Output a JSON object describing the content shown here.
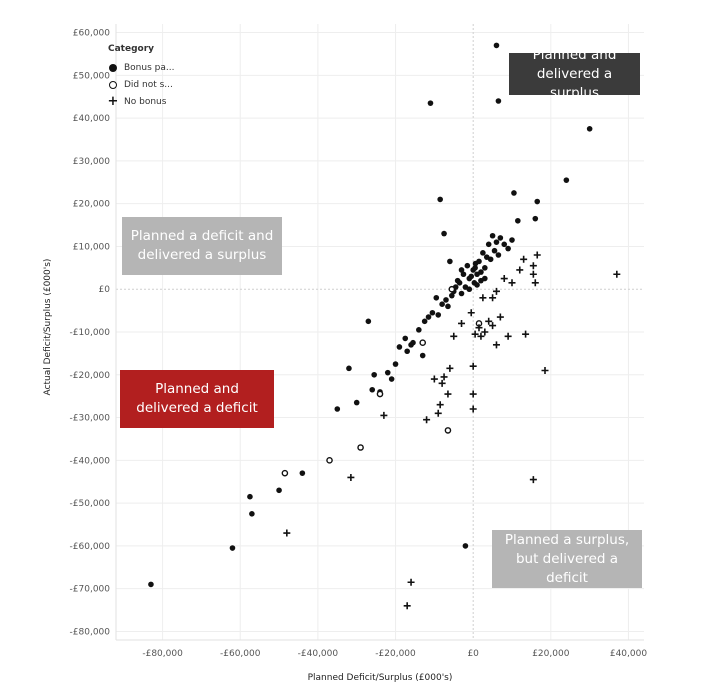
{
  "chart_data": {
    "type": "scatter",
    "title": "",
    "xlabel": "Planned Deficit/Surplus (£000's)",
    "ylabel": "Actual Deficit/Surplus (£000's)",
    "xlim": [
      -92000,
      44000
    ],
    "ylim": [
      -82000,
      62000
    ],
    "x_ticks": [
      -80000,
      -60000,
      -40000,
      -20000,
      0,
      20000,
      40000
    ],
    "x_tick_labels": [
      "-£80,000",
      "-£60,000",
      "-£40,000",
      "-£20,000",
      "£0",
      "£20,000",
      "£40,000"
    ],
    "y_ticks": [
      60000,
      50000,
      40000,
      30000,
      20000,
      10000,
      0,
      -10000,
      -20000,
      -30000,
      -40000,
      -50000,
      -60000,
      -70000,
      -80000
    ],
    "y_tick_labels": [
      "£60,000",
      "£50,000",
      "£40,000",
      "£30,000",
      "£20,000",
      "£10,000",
      "£0",
      "-£10,000",
      "-£20,000",
      "-£30,000",
      "-£40,000",
      "-£50,000",
      "-£60,000",
      "-£70,000",
      "-£80,000"
    ],
    "grid": true,
    "legend": {
      "title": "Category",
      "placement": "top-left",
      "entries": [
        {
          "label": "Bonus pa...",
          "marker": "filled-circle"
        },
        {
          "label": "Did not s...",
          "marker": "open-circle"
        },
        {
          "label": "No bonus",
          "marker": "plus"
        }
      ]
    },
    "series": [
      {
        "marker": "filled-circle",
        "points": [
          [
            -83000,
            -69000
          ],
          [
            -62000,
            -60500
          ],
          [
            -57500,
            -48500
          ],
          [
            -57000,
            -52500
          ],
          [
            -50000,
            -47000
          ],
          [
            -44000,
            -43000
          ],
          [
            -35000,
            -28000
          ],
          [
            -32000,
            -18500
          ],
          [
            -30000,
            -26500
          ],
          [
            -27000,
            -7500
          ],
          [
            -26000,
            -23500
          ],
          [
            -25500,
            -20000
          ],
          [
            -24000,
            -24000
          ],
          [
            -22000,
            -19500
          ],
          [
            -21000,
            -21000
          ],
          [
            -20000,
            -17500
          ],
          [
            -19000,
            -13500
          ],
          [
            -17500,
            -11500
          ],
          [
            -17000,
            -14500
          ],
          [
            -16000,
            -13000
          ],
          [
            -15500,
            -12500
          ],
          [
            -14000,
            -9500
          ],
          [
            -13000,
            -15500
          ],
          [
            -12500,
            -7500
          ],
          [
            -11500,
            -6500
          ],
          [
            -10500,
            -5500
          ],
          [
            -9500,
            -2000
          ],
          [
            -9000,
            -6000
          ],
          [
            -8500,
            21000
          ],
          [
            -8000,
            -3500
          ],
          [
            -7500,
            13000
          ],
          [
            -7000,
            -2500
          ],
          [
            -6500,
            -4000
          ],
          [
            -6000,
            6500
          ],
          [
            -5500,
            -1500
          ],
          [
            -5000,
            -500
          ],
          [
            -4500,
            500
          ],
          [
            -4000,
            2000
          ],
          [
            -3500,
            1500
          ],
          [
            -3000,
            4500
          ],
          [
            -2500,
            3500
          ],
          [
            -2000,
            500
          ],
          [
            -1500,
            5500
          ],
          [
            -1000,
            2500
          ],
          [
            -500,
            3000
          ],
          [
            0,
            4500
          ],
          [
            300,
            1500
          ],
          [
            600,
            6000
          ],
          [
            1000,
            3500
          ],
          [
            1500,
            6500
          ],
          [
            2000,
            4000
          ],
          [
            2500,
            8500
          ],
          [
            3000,
            5000
          ],
          [
            3500,
            7500
          ],
          [
            4000,
            10500
          ],
          [
            4500,
            7000
          ],
          [
            5000,
            12500
          ],
          [
            5500,
            9000
          ],
          [
            6000,
            11000
          ],
          [
            6500,
            8000
          ],
          [
            7000,
            12000
          ],
          [
            8000,
            10500
          ],
          [
            9000,
            9500
          ],
          [
            10000,
            11500
          ],
          [
            11500,
            16000
          ],
          [
            10500,
            22500
          ],
          [
            16500,
            20500
          ],
          [
            16000,
            16500
          ],
          [
            24000,
            25500
          ],
          [
            30000,
            37500
          ],
          [
            6000,
            57000
          ],
          [
            6500,
            44000
          ],
          [
            -11000,
            43500
          ],
          [
            -2000,
            -60000
          ],
          [
            2000,
            2000
          ],
          [
            -1000,
            0
          ],
          [
            1000,
            1000
          ],
          [
            3000,
            2500
          ],
          [
            -3000,
            -1000
          ],
          [
            500,
            5000
          ]
        ]
      },
      {
        "marker": "open-circle",
        "points": [
          [
            -48500,
            -43000
          ],
          [
            -37000,
            -40000
          ],
          [
            -29000,
            -37000
          ],
          [
            -24000,
            -24500
          ],
          [
            -6500,
            -33000
          ],
          [
            -13000,
            -12500
          ],
          [
            1500,
            -8000
          ],
          [
            -5500,
            0
          ]
        ]
      },
      {
        "marker": "plus",
        "points": [
          [
            -48000,
            -57000
          ],
          [
            -31500,
            -44000
          ],
          [
            -23000,
            -29500
          ],
          [
            -17000,
            -74000
          ],
          [
            -16000,
            -68500
          ],
          [
            -12000,
            -30500
          ],
          [
            -10000,
            -21000
          ],
          [
            -9000,
            -29000
          ],
          [
            -8500,
            -27000
          ],
          [
            -8000,
            -22000
          ],
          [
            -7500,
            -20500
          ],
          [
            -6500,
            -24500
          ],
          [
            -6000,
            -18500
          ],
          [
            -5000,
            -11000
          ],
          [
            0,
            -18000
          ],
          [
            0,
            -24500
          ],
          [
            0,
            -28000
          ],
          [
            500,
            -10500
          ],
          [
            1500,
            -9000
          ],
          [
            2000,
            -11000
          ],
          [
            3000,
            -10000
          ],
          [
            4000,
            -7500
          ],
          [
            5000,
            -8500
          ],
          [
            6000,
            -13000
          ],
          [
            7000,
            -6500
          ],
          [
            9000,
            -11000
          ],
          [
            13500,
            -10500
          ],
          [
            18500,
            -19000
          ],
          [
            15500,
            -44500
          ],
          [
            2500,
            -2000
          ],
          [
            5000,
            -2000
          ],
          [
            6000,
            -500
          ],
          [
            8000,
            2500
          ],
          [
            10000,
            1500
          ],
          [
            12000,
            4500
          ],
          [
            13000,
            7000
          ],
          [
            15500,
            3500
          ],
          [
            16000,
            1500
          ],
          [
            15500,
            5500
          ],
          [
            16500,
            8000
          ],
          [
            37000,
            3500
          ],
          [
            -3000,
            -8000
          ],
          [
            -500,
            -5500
          ]
        ]
      }
    ],
    "quadrant_labels": {
      "top_right": "Planned and delivered a surplus",
      "top_left": "Planned a deficit and delivered a surplus",
      "bottom_left": "Planned and delivered a deficit",
      "bottom_right": "Planned a surplus, but delivered a deficit"
    },
    "colors": {
      "marker": "#111111",
      "top_right_box": "#3b3b3b",
      "top_left_box": "#b5b5b5",
      "bottom_left_box": "#b21f1f",
      "bottom_right_box": "#b5b5b5",
      "grid": "#eeeeee"
    }
  }
}
